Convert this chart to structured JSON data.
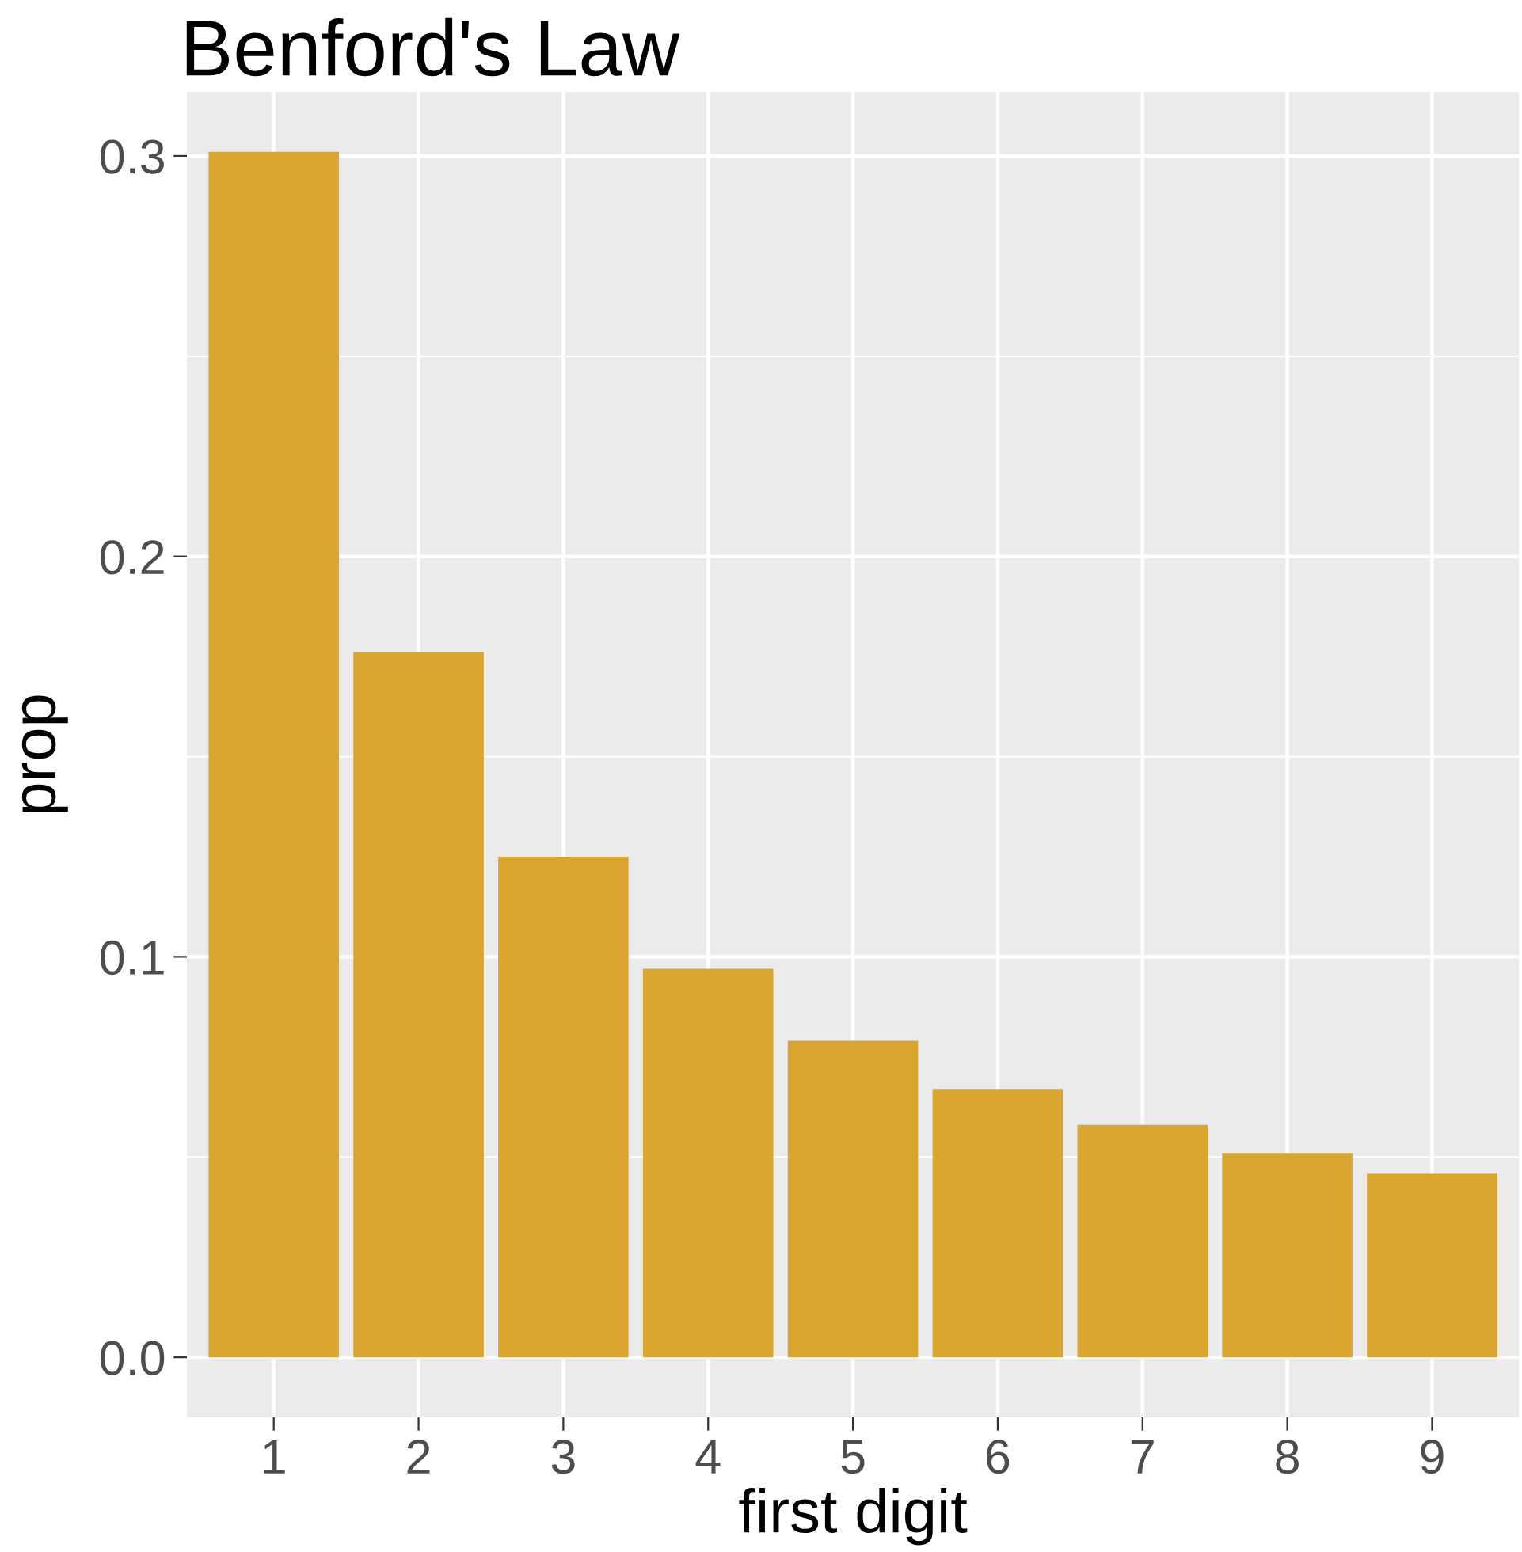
{
  "chart_data": {
    "type": "bar",
    "title": "Benford's Law",
    "xlabel": "first digit",
    "ylabel": "prop",
    "categories": [
      "1",
      "2",
      "3",
      "4",
      "5",
      "6",
      "7",
      "8",
      "9"
    ],
    "values": [
      0.301,
      0.176,
      0.125,
      0.097,
      0.079,
      0.067,
      0.058,
      0.051,
      0.046
    ],
    "color": "#daa52f",
    "ylim": [
      -0.015,
      0.316
    ],
    "yticks": [
      {
        "value": 0,
        "label": "0.0"
      },
      0.1,
      0.2,
      0.3
    ],
    "grid": true
  }
}
